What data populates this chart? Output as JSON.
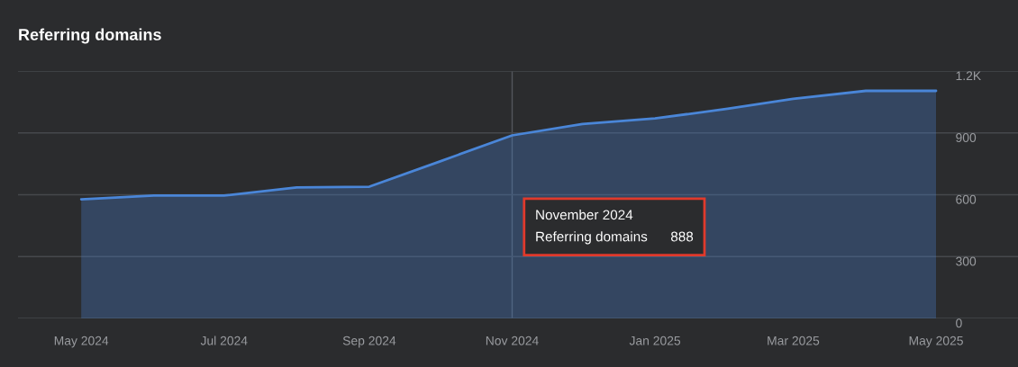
{
  "chart_data": {
    "type": "area",
    "title": "Referring domains",
    "x": [
      "2024-05",
      "2024-06",
      "2024-07",
      "2024-08",
      "2024-09",
      "2024-10",
      "2024-11",
      "2024-12",
      "2025-01",
      "2025-02",
      "2025-03",
      "2025-04",
      "2025-05"
    ],
    "series": [
      {
        "color": "#4a86d8",
        "values": [
          578,
          596,
          596,
          635,
          639,
          761,
          888,
          943,
          970,
          1017,
          1065,
          1104,
          1104
        ]
      }
    ],
    "xlim": [
      "2024-04-04",
      "2025-06-05"
    ],
    "xticks": [
      {
        "value": "2024-05",
        "label": "May 2024"
      },
      {
        "value": "2024-07",
        "label": "Jul 2024"
      },
      {
        "value": "2024-09",
        "label": "Sep 2024"
      },
      {
        "value": "2024-11",
        "label": "Nov 2024"
      },
      {
        "value": "2025-01",
        "label": "Jan 2025"
      },
      {
        "value": "2025-03",
        "label": "Mar 2025"
      },
      {
        "value": "2025-05",
        "label": "May 2025"
      }
    ],
    "ylim": [
      0,
      1200
    ],
    "yticks": [
      0,
      300,
      600,
      900,
      {
        "value": 1200,
        "label": "1.2K"
      }
    ],
    "grid": "y",
    "legend": false,
    "marker": "none",
    "ref_lines": [
      {
        "axis": "x",
        "value": "2024-11",
        "color": "#55575c"
      }
    ],
    "annotations": [
      "November 2024\nReferring domains      888"
    ]
  }
}
